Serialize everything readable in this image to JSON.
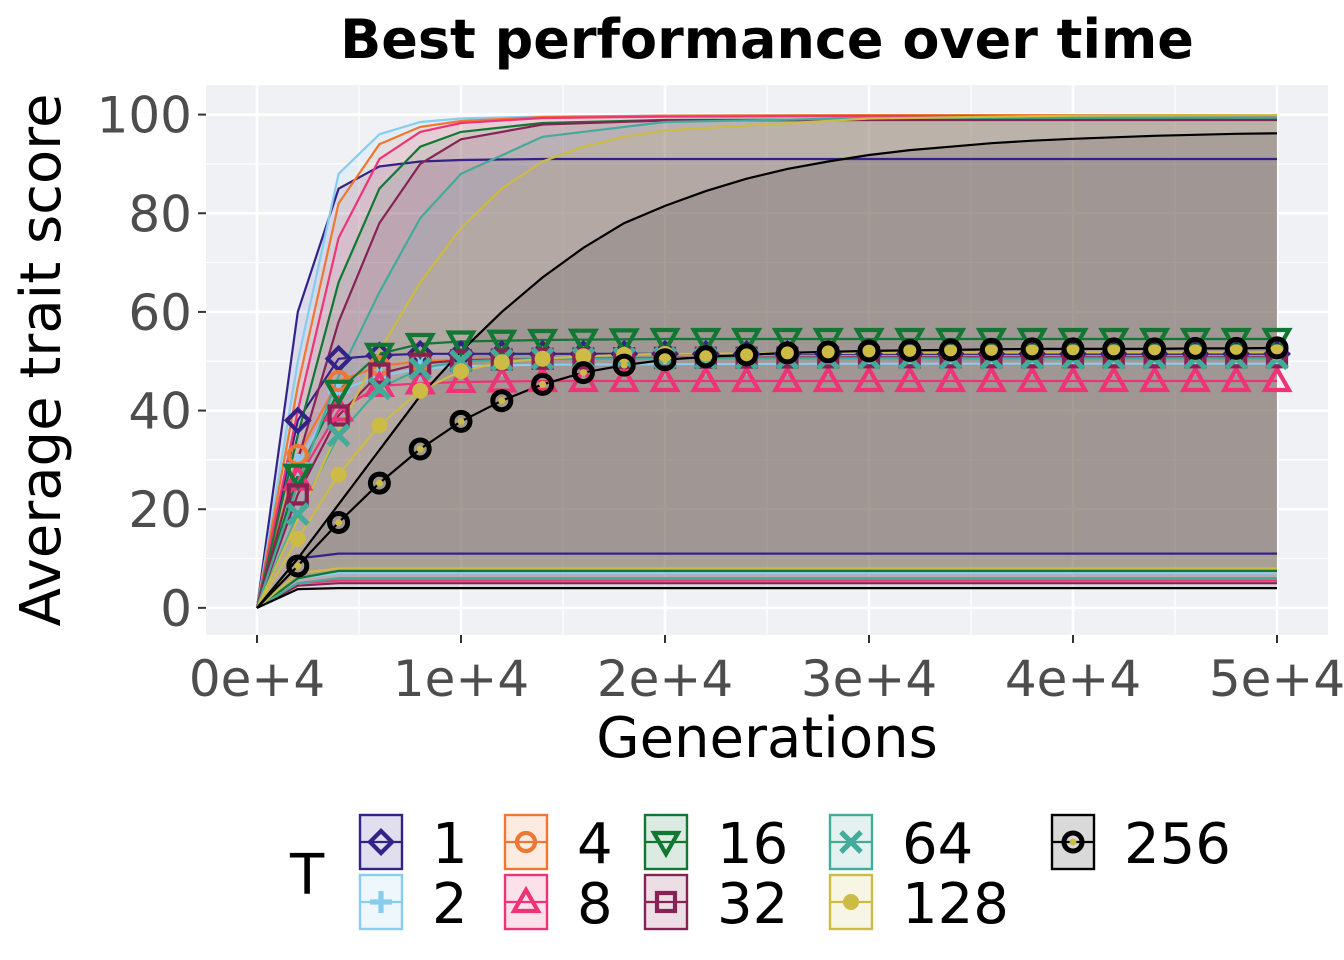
{
  "chart_data": {
    "type": "line",
    "title": "Best performance over time",
    "xlabel": "Generations",
    "ylabel": "Average trait score",
    "xlim": [
      -2500,
      52500
    ],
    "ylim": [
      -5.5,
      106
    ],
    "x_ticks": [
      0,
      10000,
      20000,
      30000,
      40000,
      50000
    ],
    "x_tick_labels": [
      "0e+4",
      "1e+4",
      "2e+4",
      "3e+4",
      "4e+4",
      "5e+4"
    ],
    "y_ticks": [
      0,
      20,
      40,
      60,
      80,
      100
    ],
    "y_tick_labels": [
      "0",
      "20",
      "40",
      "60",
      "80",
      "100"
    ],
    "grid": true,
    "legend": {
      "title": "T",
      "position": "bottom"
    },
    "series": [
      {
        "name": "1",
        "color": "#332288",
        "marker": "diamond",
        "x": [
          0,
          2000,
          4000,
          6000,
          8000,
          10000,
          14000,
          20000,
          30000,
          40000,
          50000
        ],
        "mean": [
          0,
          38,
          50.5,
          51.2,
          51.5,
          51.5,
          51.5,
          51.5,
          51.5,
          51.5,
          51.5
        ],
        "upper": [
          0,
          60,
          85,
          89.5,
          90.5,
          90.8,
          91,
          91,
          91,
          91,
          91
        ],
        "lower": [
          0,
          10,
          11,
          11,
          11,
          11,
          11,
          11,
          11,
          11,
          11
        ]
      },
      {
        "name": "2",
        "color": "#88ccee",
        "marker": "plus",
        "x": [
          0,
          2000,
          4000,
          6000,
          8000,
          10000,
          14000,
          20000,
          30000,
          40000,
          50000
        ],
        "mean": [
          0,
          29,
          44,
          47,
          48.5,
          49,
          49.3,
          49.4,
          49.5,
          49.5,
          49.5
        ],
        "upper": [
          0,
          50,
          88,
          96,
          98.5,
          99.2,
          99.6,
          99.8,
          99.9,
          99.9,
          99.9
        ],
        "lower": [
          0,
          6,
          7,
          7,
          7,
          7,
          7,
          7,
          7,
          7,
          7
        ]
      },
      {
        "name": "4",
        "color": "#ee7733",
        "marker": "circle",
        "x": [
          0,
          2000,
          4000,
          6000,
          8000,
          10000,
          14000,
          20000,
          30000,
          40000,
          50000
        ],
        "mean": [
          0,
          31,
          46,
          49,
          50,
          50.3,
          50.5,
          50.6,
          50.7,
          50.7,
          50.7
        ],
        "upper": [
          0,
          45,
          82,
          94,
          97.5,
          98.7,
          99.5,
          99.8,
          99.9,
          99.9,
          99.9
        ],
        "lower": [
          0,
          5,
          6,
          6,
          6,
          6,
          6,
          6,
          6,
          6,
          6
        ]
      },
      {
        "name": "8",
        "color": "#ee3377",
        "marker": "triangle",
        "x": [
          0,
          2000,
          4000,
          6000,
          8000,
          10000,
          14000,
          20000,
          30000,
          40000,
          50000
        ],
        "mean": [
          0,
          26,
          40,
          45,
          45.5,
          45.8,
          46,
          46,
          46,
          46,
          46
        ],
        "upper": [
          0,
          40,
          75,
          91,
          96.5,
          98.3,
          99.3,
          99.6,
          99.7,
          99.7,
          99.7
        ],
        "lower": [
          0,
          5,
          5.5,
          5.5,
          5.5,
          5.5,
          5.5,
          5.5,
          5.5,
          5.5,
          5.5
        ]
      },
      {
        "name": "16",
        "color": "#117733",
        "marker": "triangle-down",
        "x": [
          0,
          2000,
          4000,
          6000,
          8000,
          10000,
          14000,
          20000,
          30000,
          40000,
          50000
        ],
        "mean": [
          0,
          27,
          44,
          51.5,
          53.5,
          54,
          54.3,
          54.5,
          54.5,
          54.5,
          54.5
        ],
        "upper": [
          0,
          35,
          66,
          85,
          93.5,
          96.5,
          98.3,
          98.9,
          99,
          99,
          99
        ],
        "lower": [
          0,
          6,
          7.5,
          7.5,
          7.5,
          7.5,
          7.5,
          7.5,
          7.5,
          7.5,
          7.5
        ]
      },
      {
        "name": "32",
        "color": "#882255",
        "marker": "square",
        "x": [
          0,
          2000,
          4000,
          6000,
          8000,
          10000,
          14000,
          20000,
          30000,
          40000,
          50000
        ],
        "mean": [
          0,
          23,
          39,
          47.5,
          49.5,
          50.2,
          50.5,
          50.7,
          50.8,
          50.8,
          50.8
        ],
        "upper": [
          0,
          30,
          58,
          78,
          90,
          95,
          98,
          98.8,
          98.9,
          98.9,
          98.9
        ],
        "lower": [
          0,
          4.5,
          5,
          5,
          5,
          5,
          5,
          5,
          5,
          5,
          5
        ]
      },
      {
        "name": "64",
        "color": "#44aa99",
        "marker": "cross",
        "x": [
          0,
          2000,
          4000,
          6000,
          8000,
          10000,
          14000,
          20000,
          30000,
          40000,
          50000
        ],
        "mean": [
          0,
          19,
          35,
          44.5,
          48.5,
          50,
          50.5,
          50.6,
          50.6,
          50.6,
          50.6
        ],
        "upper": [
          0,
          25,
          47,
          64,
          79,
          88,
          95.5,
          98.5,
          99.3,
          99.4,
          99.4
        ],
        "lower": [
          0,
          5,
          6,
          6,
          6,
          6,
          6,
          6,
          6,
          6,
          6
        ]
      },
      {
        "name": "128",
        "color": "#ccbb44",
        "marker": "dot",
        "x": [
          0,
          2000,
          4000,
          6000,
          8000,
          10000,
          12000,
          14000,
          16000,
          18000,
          20000,
          30000,
          40000,
          50000
        ],
        "mean": [
          0,
          14,
          27,
          37,
          44,
          48,
          49.8,
          50.5,
          51,
          51.3,
          51.5,
          51.7,
          51.8,
          51.8
        ],
        "upper": [
          0,
          18,
          36,
          52,
          66,
          77,
          85,
          90.5,
          93.5,
          95.5,
          96.8,
          99.2,
          99.8,
          99.9
        ],
        "lower": [
          0,
          7,
          8,
          8,
          8,
          8,
          8,
          8,
          8,
          8,
          8,
          8,
          8,
          8
        ]
      },
      {
        "name": "256",
        "color": "#000000",
        "marker": "circle-bold",
        "x": [
          0,
          2000,
          4000,
          6000,
          8000,
          10000,
          12000,
          14000,
          16000,
          18000,
          20000,
          22000,
          24000,
          26000,
          28000,
          30000,
          32000,
          34000,
          36000,
          38000,
          40000,
          42000,
          44000,
          46000,
          48000,
          50000
        ],
        "mean": [
          0,
          8.5,
          17.3,
          25.3,
          32.2,
          37.8,
          42,
          45.3,
          47.7,
          49.2,
          50.3,
          50.9,
          51.3,
          51.7,
          51.9,
          52.1,
          52.2,
          52.3,
          52.4,
          52.5,
          52.5,
          52.5,
          52.5,
          52.6,
          52.6,
          52.7
        ],
        "upper": [
          0,
          10,
          21,
          32,
          43,
          52,
          60,
          67,
          73,
          78,
          81.5,
          84.5,
          87,
          89,
          90.5,
          91.8,
          92.8,
          93.5,
          94.2,
          94.7,
          95.1,
          95.4,
          95.7,
          95.9,
          96.1,
          96.2
        ],
        "lower": [
          0,
          3.8,
          4,
          4,
          4,
          4,
          4,
          4,
          4,
          4,
          4,
          4,
          4,
          4,
          4,
          4,
          4,
          4,
          4,
          4,
          4,
          4,
          4,
          4,
          4,
          4
        ]
      }
    ]
  }
}
